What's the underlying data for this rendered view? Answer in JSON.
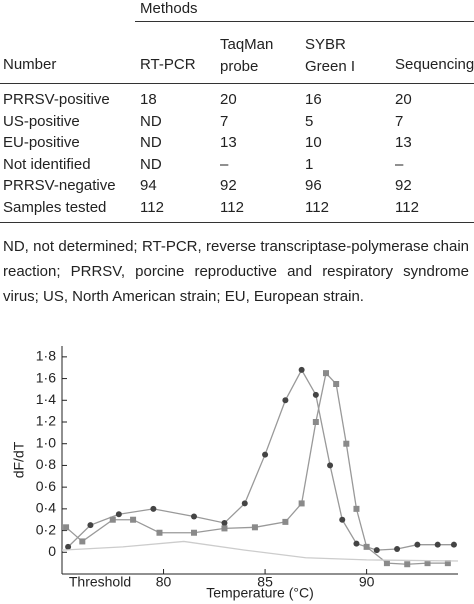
{
  "table": {
    "group_header": "Methods",
    "headers": [
      "Number",
      "RT-PCR",
      "TaqMan probe",
      "SYBR Green I",
      "Sequencing"
    ],
    "rows": [
      [
        "PRRSV-positive",
        "18",
        "20",
        "16",
        "20"
      ],
      [
        "US-positive",
        "ND",
        "7",
        "5",
        "7"
      ],
      [
        "EU-positive",
        "ND",
        "13",
        "10",
        "13"
      ],
      [
        "Not identified",
        "ND",
        "–",
        "1",
        "–"
      ],
      [
        "PRRSV-negative",
        "94",
        "92",
        "96",
        "92"
      ],
      [
        "Samples tested",
        "112",
        "112",
        "112",
        "112"
      ]
    ]
  },
  "footnote": "ND, not determined; RT-PCR, reverse transcriptase-polymerase chain reaction; PRRSV, porcine reproductive and respiratory syndrome virus; US, North American strain; EU, European strain.",
  "chart_data": {
    "type": "line",
    "x_label": "Temperature (°C)",
    "y_label": "dF/dT",
    "xlim": [
      75,
      94.5
    ],
    "ylim": [
      -0.2,
      1.9
    ],
    "xticks": [
      80,
      85,
      90
    ],
    "yticks": [
      0,
      {
        "value": 0.2,
        "label": "0·2"
      },
      {
        "value": 0.4,
        "label": "0·4"
      },
      {
        "value": 0.6,
        "label": "0·6"
      },
      {
        "value": 0.8,
        "label": "0·8"
      },
      {
        "value": 1.0,
        "label": "1·0"
      },
      {
        "value": 1.2,
        "label": "1·2"
      },
      {
        "value": 1.4,
        "label": "1·4"
      },
      {
        "value": 1.6,
        "label": "1·6"
      },
      {
        "value": 1.8,
        "label": "1·8"
      }
    ],
    "series": [
      {
        "marker": "circle",
        "color": "#444444",
        "x": [
          75.3,
          76.4,
          77.8,
          79.5,
          81.5,
          83,
          84,
          85,
          86,
          86.8,
          87.5,
          88.2,
          88.8,
          89.5,
          90.5,
          91.5,
          92.5,
          93.5,
          94.3
        ],
        "values": [
          0.05,
          0.25,
          0.35,
          0.4,
          0.33,
          0.27,
          0.45,
          0.9,
          1.4,
          1.68,
          1.45,
          0.8,
          0.3,
          0.08,
          0.02,
          0.03,
          0.07,
          0.07,
          0.07
        ]
      },
      {
        "marker": "square",
        "color": "#8a8a8a",
        "x": [
          75.2,
          76,
          77.5,
          78.5,
          79.8,
          81.5,
          83,
          84.5,
          86,
          86.8,
          87.5,
          88,
          88.5,
          89,
          89.5,
          90,
          91,
          92,
          93,
          94
        ],
        "values": [
          0.23,
          0.1,
          0.3,
          0.3,
          0.18,
          0.18,
          0.22,
          0.23,
          0.28,
          0.45,
          1.2,
          1.65,
          1.55,
          1.0,
          0.4,
          0.05,
          -0.1,
          -0.11,
          -0.1,
          -0.1
        ]
      },
      {
        "name": "Threshold",
        "marker": "none",
        "color": "#cccccc",
        "x": [
          75,
          78,
          81,
          84,
          87,
          90,
          94.5
        ],
        "values": [
          0.02,
          0.05,
          0.1,
          0.02,
          -0.05,
          -0.07,
          -0.08
        ]
      }
    ]
  }
}
